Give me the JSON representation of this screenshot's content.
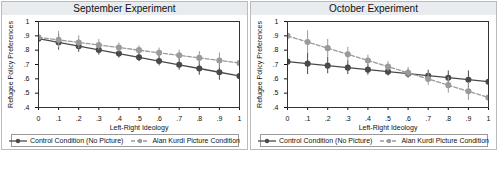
{
  "chart_data": [
    {
      "type": "line",
      "title": "September Experiment",
      "xlabel": "Left-Right Ideology",
      "ylabel": "Refugee Policy Preferences",
      "x": [
        0,
        0.1,
        0.2,
        0.3,
        0.4,
        0.5,
        0.6,
        0.7,
        0.8,
        0.9,
        1
      ],
      "xlim": [
        0,
        1
      ],
      "xticks": [
        0,
        {
          "value": 0.1,
          "label": ".1"
        },
        {
          "value": 0.2,
          "label": ".2"
        },
        {
          "value": 0.3,
          "label": ".3"
        },
        {
          "value": 0.4,
          "label": ".4"
        },
        {
          "value": 0.5,
          "label": ".5"
        },
        {
          "value": 0.6,
          "label": ".6"
        },
        {
          "value": 0.7,
          "label": ".7"
        },
        {
          "value": 0.8,
          "label": ".8"
        },
        {
          "value": 0.9,
          "label": ".9"
        },
        1
      ],
      "ylim": [
        0.4,
        1
      ],
      "yticks": [
        {
          "value": 0.4,
          "label": ".4"
        },
        {
          "value": 0.5,
          "label": ".5"
        },
        {
          "value": 0.6,
          "label": ".6"
        },
        {
          "value": 0.7,
          "label": ".7"
        },
        {
          "value": 0.8,
          "label": ".8"
        },
        {
          "value": 0.9,
          "label": ".9"
        },
        1
      ],
      "grid": false,
      "legend": "bottom",
      "series": [
        {
          "name": "Control Condition (No Picture)",
          "color": "#4a4a4a",
          "line_style": "solid",
          "marker": "circle",
          "values": [
            0.88,
            0.854,
            0.828,
            0.802,
            0.776,
            0.75,
            0.724,
            0.698,
            0.672,
            0.646,
            0.62
          ],
          "ci_low": [
            0.815,
            0.8,
            0.785,
            0.765,
            0.745,
            0.72,
            0.69,
            0.66,
            0.625,
            0.59,
            0.55
          ],
          "ci_high": [
            0.945,
            0.91,
            0.87,
            0.84,
            0.81,
            0.78,
            0.76,
            0.74,
            0.72,
            0.7,
            0.69
          ]
        },
        {
          "name": "Alan Kurdi Picture Condition",
          "color": "#9a9a9a",
          "line_style": "dashed",
          "marker": "circle",
          "values": [
            0.89,
            0.872,
            0.854,
            0.836,
            0.818,
            0.8,
            0.782,
            0.764,
            0.746,
            0.728,
            0.71
          ],
          "ci_low": [
            0.82,
            0.815,
            0.81,
            0.8,
            0.785,
            0.77,
            0.75,
            0.725,
            0.7,
            0.675,
            0.65
          ],
          "ci_high": [
            0.96,
            0.93,
            0.9,
            0.875,
            0.85,
            0.83,
            0.815,
            0.8,
            0.79,
            0.78,
            0.77
          ]
        }
      ]
    },
    {
      "type": "line",
      "title": "October Experiment",
      "xlabel": "Left-Right Ideology",
      "ylabel": "Refugee Policy Preferences",
      "x": [
        0,
        0.1,
        0.2,
        0.3,
        0.4,
        0.5,
        0.6,
        0.7,
        0.8,
        0.9,
        1
      ],
      "xlim": [
        0,
        1
      ],
      "xticks": [
        0,
        {
          "value": 0.1,
          "label": ".1"
        },
        {
          "value": 0.2,
          "label": ".2"
        },
        {
          "value": 0.3,
          "label": ".3"
        },
        {
          "value": 0.4,
          "label": ".4"
        },
        {
          "value": 0.5,
          "label": ".5"
        },
        {
          "value": 0.6,
          "label": ".6"
        },
        {
          "value": 0.7,
          "label": ".7"
        },
        {
          "value": 0.8,
          "label": ".8"
        },
        {
          "value": 0.9,
          "label": ".9"
        },
        1
      ],
      "ylim": [
        0.4,
        1
      ],
      "yticks": [
        {
          "value": 0.4,
          "label": ".4"
        },
        {
          "value": 0.5,
          "label": ".5"
        },
        {
          "value": 0.6,
          "label": ".6"
        },
        {
          "value": 0.7,
          "label": ".7"
        },
        {
          "value": 0.8,
          "label": ".8"
        },
        {
          "value": 0.9,
          "label": ".9"
        },
        1
      ],
      "grid": false,
      "legend": "bottom",
      "series": [
        {
          "name": "Control Condition (No Picture)",
          "color": "#4a4a4a",
          "line_style": "solid",
          "marker": "circle",
          "values": [
            0.72,
            0.706,
            0.692,
            0.678,
            0.664,
            0.65,
            0.636,
            0.622,
            0.608,
            0.594,
            0.58
          ],
          "ci_low": [
            0.63,
            0.63,
            0.635,
            0.63,
            0.625,
            0.62,
            0.605,
            0.585,
            0.56,
            0.535,
            0.51
          ],
          "ci_high": [
            0.81,
            0.78,
            0.75,
            0.725,
            0.7,
            0.68,
            0.665,
            0.66,
            0.655,
            0.655,
            0.65
          ]
        },
        {
          "name": "Alan Kurdi Picture Condition",
          "color": "#9a9a9a",
          "line_style": "dashed",
          "marker": "circle",
          "values": [
            0.9,
            0.857,
            0.814,
            0.771,
            0.728,
            0.685,
            0.642,
            0.599,
            0.556,
            0.513,
            0.47
          ],
          "ci_low": [
            0.81,
            0.78,
            0.75,
            0.72,
            0.69,
            0.65,
            0.605,
            0.555,
            0.5,
            0.45,
            0.4
          ],
          "ci_high": [
            0.99,
            0.935,
            0.875,
            0.82,
            0.765,
            0.72,
            0.68,
            0.645,
            0.61,
            0.575,
            0.54
          ]
        }
      ]
    }
  ]
}
